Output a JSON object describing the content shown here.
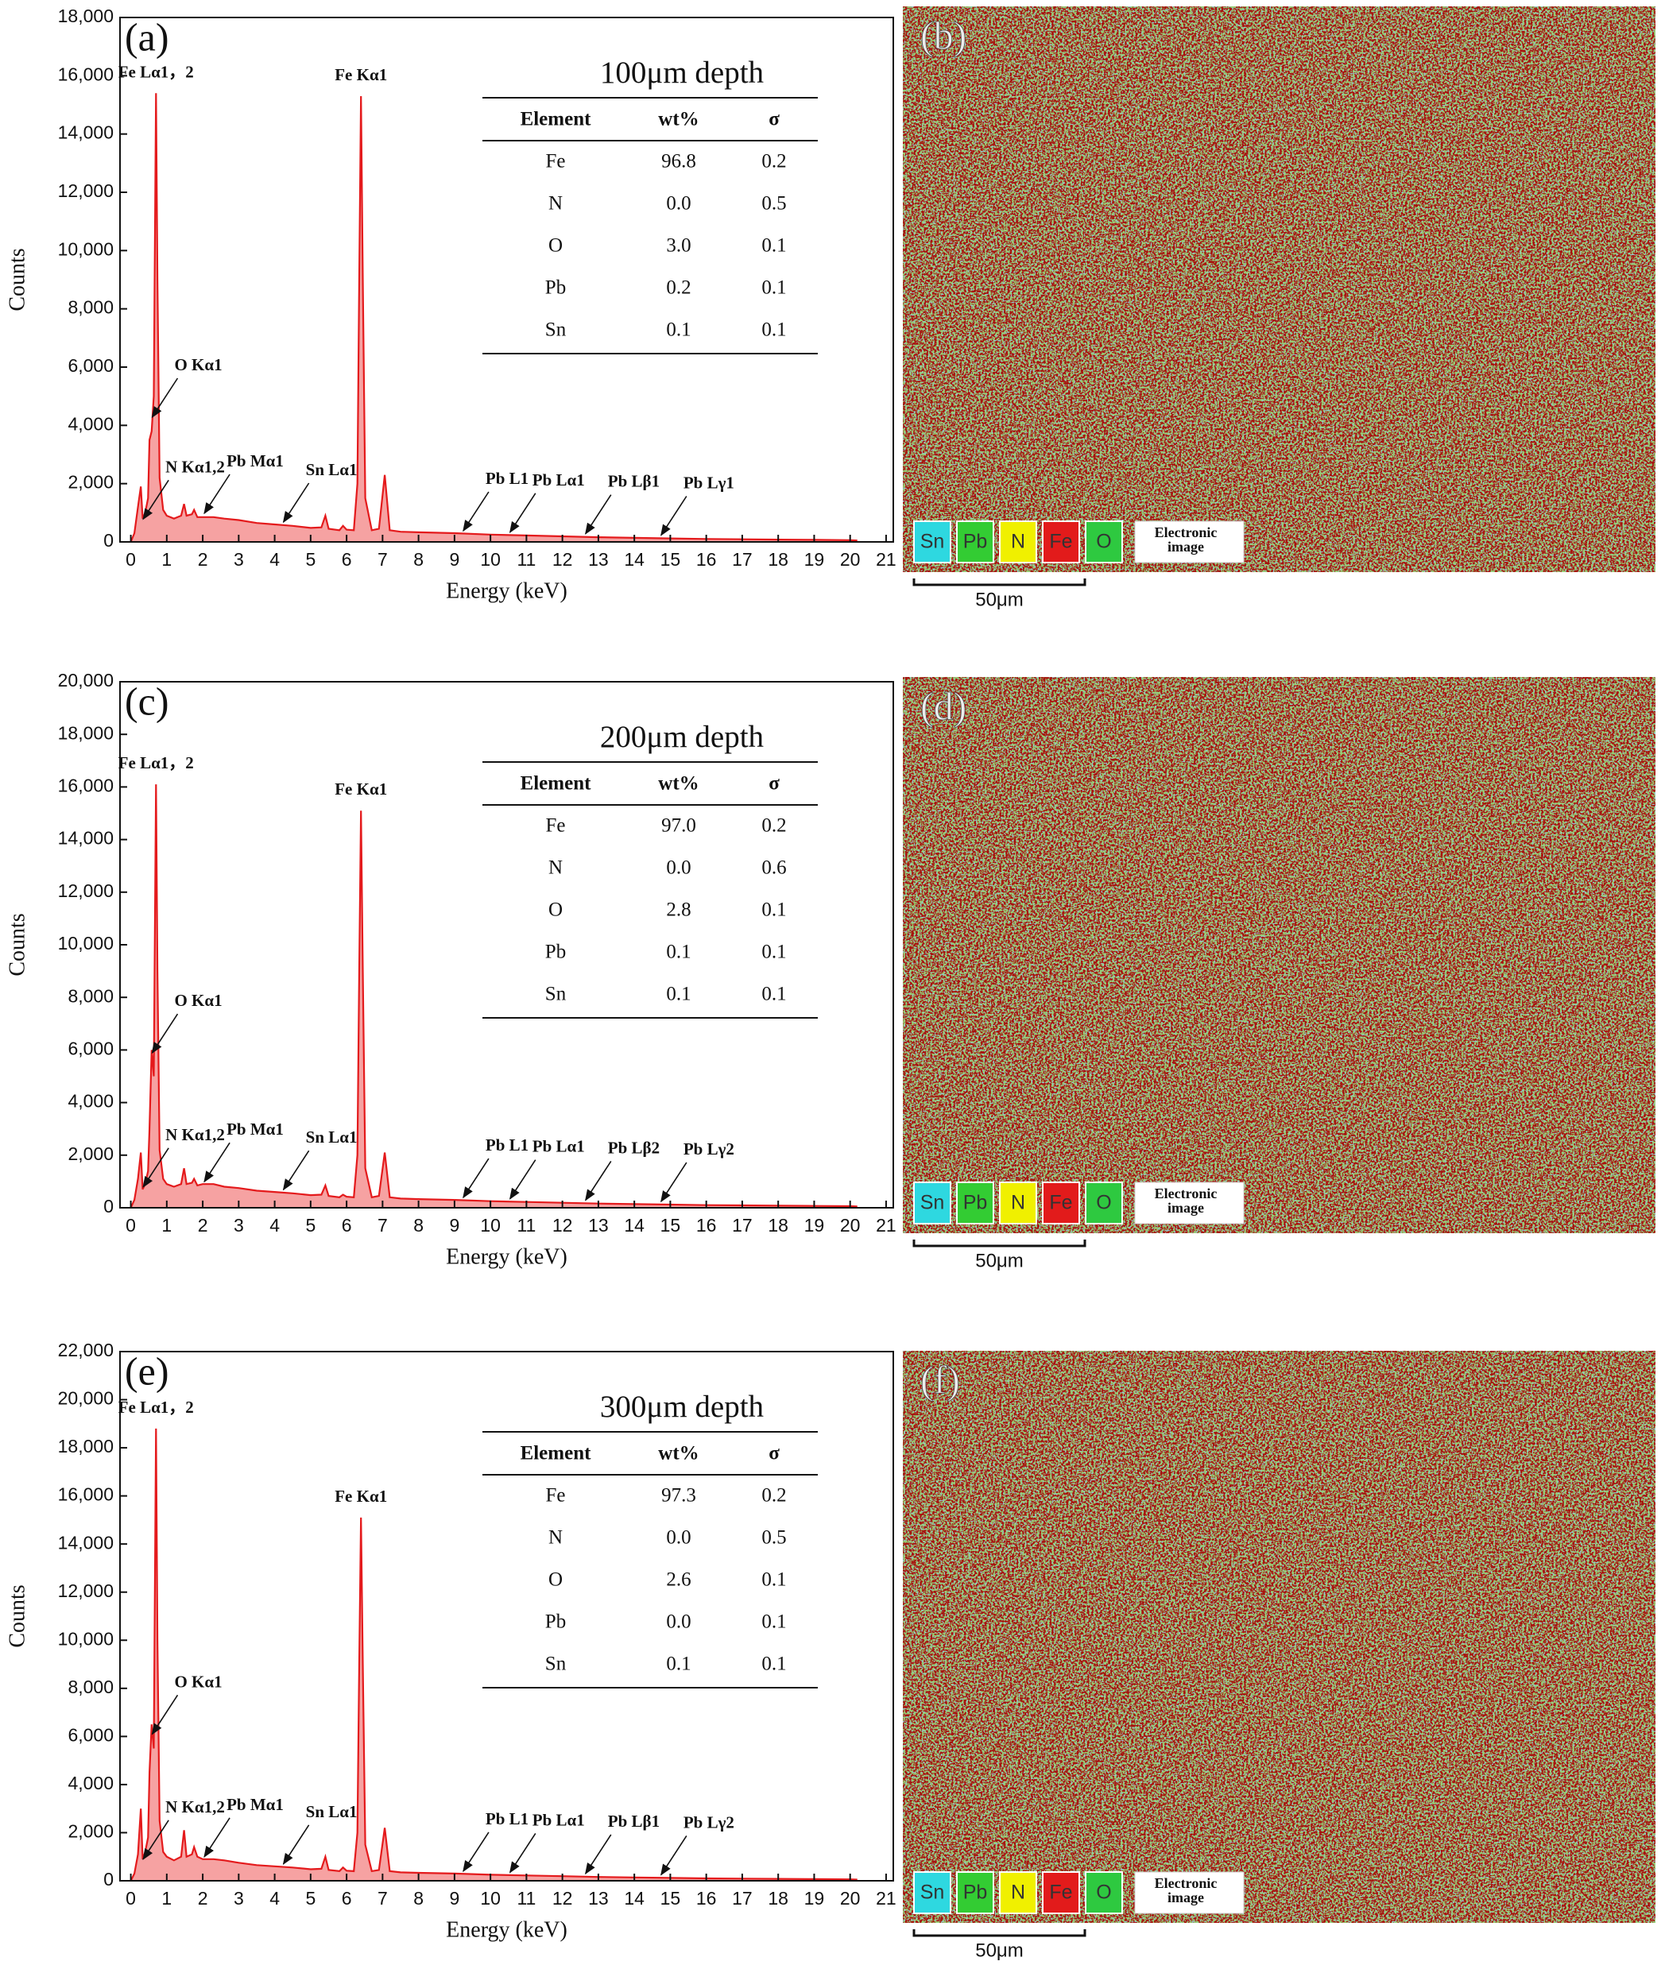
{
  "chart_data": [
    {
      "type": "area",
      "panel": "(a)",
      "color": "#e41a1c",
      "fill_color": "#f6a2a2",
      "xlabel": "Energy (keV)",
      "ylabel": "Counts",
      "xlim": [
        -0.3,
        21.2
      ],
      "ylim": [
        0,
        18000
      ],
      "xticks": [
        0,
        1,
        2,
        3,
        4,
        5,
        6,
        7,
        8,
        9,
        10,
        11,
        12,
        13,
        14,
        15,
        16,
        17,
        18,
        19,
        20,
        21
      ],
      "yticks": [
        0,
        {
          "value": 2000,
          "label": "2,000"
        },
        {
          "value": 4000,
          "label": "4,000"
        },
        {
          "value": 6000,
          "label": "6,000"
        },
        {
          "value": 8000,
          "label": "8,000"
        },
        {
          "value": 10000,
          "label": "10,000"
        },
        {
          "value": 12000,
          "label": "12,000"
        },
        {
          "value": 14000,
          "label": "14,000"
        },
        {
          "value": 16000,
          "label": "16,000"
        },
        {
          "value": 18000,
          "label": "18,000"
        }
      ],
      "x": [
        0,
        0.1,
        0.2,
        0.28,
        0.33,
        0.4,
        0.48,
        0.52,
        0.58,
        0.64,
        0.7,
        0.74,
        0.8,
        0.9,
        1.0,
        1.2,
        1.4,
        1.48,
        1.55,
        1.7,
        1.76,
        1.85,
        2.0,
        2.3,
        2.6,
        3.0,
        3.5,
        4.0,
        4.5,
        5.0,
        5.3,
        5.41,
        5.5,
        5.8,
        5.9,
        6.0,
        6.2,
        6.3,
        6.35,
        6.4,
        6.45,
        6.52,
        6.7,
        6.9,
        7.06,
        7.2,
        7.5,
        8,
        9,
        10,
        11,
        12,
        13,
        14,
        15,
        16,
        17,
        18,
        19,
        20,
        20.2
      ],
      "values": [
        0,
        300,
        1200,
        1900,
        800,
        1000,
        1500,
        3500,
        3800,
        5000,
        15400,
        9000,
        2200,
        1100,
        900,
        800,
        900,
        1300,
        900,
        950,
        1100,
        850,
        850,
        850,
        800,
        750,
        650,
        600,
        550,
        480,
        500,
        900,
        450,
        400,
        550,
        420,
        400,
        2000,
        9000,
        15300,
        9000,
        1500,
        400,
        450,
        2300,
        400,
        350,
        330,
        300,
        250,
        220,
        190,
        160,
        140,
        120,
        100,
        90,
        80,
        70,
        60,
        50
      ],
      "annotations": [
        {
          "text": "Fe Lα1，2",
          "x": 0.7,
          "y": 15400,
          "arrow": false
        },
        {
          "text": "Fe Kα1",
          "x": 6.4,
          "y": 15300,
          "arrow": false
        },
        {
          "text": "O Kα1",
          "x": 0.55,
          "y": 4200,
          "arrow": true
        },
        {
          "text": "N Kα1,2",
          "x": 0.3,
          "y": 700,
          "arrow": true
        },
        {
          "text": "Pb Mα1",
          "x": 2.0,
          "y": 900,
          "arrow": true
        },
        {
          "text": "Sn Lα1",
          "x": 4.2,
          "y": 600,
          "arrow": true
        },
        {
          "text": "Pb L1",
          "x": 9.2,
          "y": 300,
          "arrow": true
        },
        {
          "text": "Pb Lα1",
          "x": 10.5,
          "y": 250,
          "arrow": true
        },
        {
          "text": "Pb Lβ1",
          "x": 12.6,
          "y": 200,
          "arrow": true
        },
        {
          "text": "Pb Lγ1",
          "x": 14.7,
          "y": 150,
          "arrow": true
        }
      ],
      "table": {
        "title": "100μm depth",
        "columns": [
          "Element",
          "wt%",
          "σ"
        ],
        "rows": [
          [
            "Fe",
            "96.8",
            "0.2"
          ],
          [
            "N",
            "0.0",
            "0.5"
          ],
          [
            "O",
            "3.0",
            "0.1"
          ],
          [
            "Pb",
            "0.2",
            "0.1"
          ],
          [
            "Sn",
            "0.1",
            "0.1"
          ]
        ]
      }
    },
    {
      "type": "area",
      "panel": "(c)",
      "color": "#e41a1c",
      "fill_color": "#f6a2a2",
      "xlabel": "Energy (keV)",
      "ylabel": "Counts",
      "xlim": [
        -0.3,
        21.2
      ],
      "ylim": [
        0,
        20000
      ],
      "xticks": [
        0,
        1,
        2,
        3,
        4,
        5,
        6,
        7,
        8,
        9,
        10,
        11,
        12,
        13,
        14,
        15,
        16,
        17,
        18,
        19,
        20,
        21
      ],
      "yticks": [
        0,
        {
          "value": 2000,
          "label": "2,000"
        },
        {
          "value": 4000,
          "label": "4,000"
        },
        {
          "value": 6000,
          "label": "6,000"
        },
        {
          "value": 8000,
          "label": "8,000"
        },
        {
          "value": 10000,
          "label": "10,000"
        },
        {
          "value": 12000,
          "label": "12,000"
        },
        {
          "value": 14000,
          "label": "14,000"
        },
        {
          "value": 16000,
          "label": "16,000"
        },
        {
          "value": 18000,
          "label": "18,000"
        },
        {
          "value": 20000,
          "label": "20,000"
        }
      ],
      "x": [
        0,
        0.1,
        0.2,
        0.28,
        0.33,
        0.4,
        0.48,
        0.52,
        0.58,
        0.64,
        0.7,
        0.74,
        0.8,
        0.9,
        1.0,
        1.2,
        1.4,
        1.48,
        1.55,
        1.7,
        1.76,
        1.85,
        2.0,
        2.3,
        2.6,
        3.0,
        3.5,
        4.0,
        4.5,
        5.0,
        5.3,
        5.41,
        5.5,
        5.8,
        5.9,
        6.0,
        6.2,
        6.3,
        6.35,
        6.4,
        6.45,
        6.52,
        6.7,
        6.9,
        7.06,
        7.2,
        7.5,
        8,
        9,
        10,
        11,
        12,
        13,
        14,
        15,
        16,
        17,
        18,
        19,
        20,
        20.2
      ],
      "values": [
        0,
        300,
        1100,
        2100,
        700,
        900,
        1400,
        3000,
        6000,
        5000,
        16100,
        9000,
        2200,
        1100,
        900,
        800,
        900,
        1500,
        900,
        950,
        1100,
        850,
        900,
        900,
        800,
        750,
        650,
        600,
        550,
        480,
        500,
        850,
        450,
        400,
        500,
        420,
        400,
        2000,
        9000,
        15100,
        9000,
        1500,
        400,
        450,
        2100,
        400,
        350,
        330,
        300,
        250,
        220,
        190,
        160,
        140,
        120,
        100,
        90,
        80,
        70,
        60,
        50
      ],
      "annotations": [
        {
          "text": "Fe Lα1，2",
          "x": 0.7,
          "y": 16100,
          "arrow": false
        },
        {
          "text": "Fe Kα1",
          "x": 6.4,
          "y": 15100,
          "arrow": false
        },
        {
          "text": "O Kα1",
          "x": 0.55,
          "y": 5800,
          "arrow": true
        },
        {
          "text": "N Kα1,2",
          "x": 0.3,
          "y": 700,
          "arrow": true
        },
        {
          "text": "Pb Mα1",
          "x": 2.0,
          "y": 900,
          "arrow": true
        },
        {
          "text": "Sn Lα1",
          "x": 4.2,
          "y": 600,
          "arrow": true
        },
        {
          "text": "Pb L1",
          "x": 9.2,
          "y": 300,
          "arrow": true
        },
        {
          "text": "Pb Lα1",
          "x": 10.5,
          "y": 250,
          "arrow": true
        },
        {
          "text": "Pb Lβ2",
          "x": 12.6,
          "y": 200,
          "arrow": true
        },
        {
          "text": "Pb Lγ2",
          "x": 14.7,
          "y": 150,
          "arrow": true
        }
      ],
      "table": {
        "title": "200μm depth",
        "columns": [
          "Element",
          "wt%",
          "σ"
        ],
        "rows": [
          [
            "Fe",
            "97.0",
            "0.2"
          ],
          [
            "N",
            "0.0",
            "0.6"
          ],
          [
            "O",
            "2.8",
            "0.1"
          ],
          [
            "Pb",
            "0.1",
            "0.1"
          ],
          [
            "Sn",
            "0.1",
            "0.1"
          ]
        ]
      }
    },
    {
      "type": "area",
      "panel": "(e)",
      "color": "#e41a1c",
      "fill_color": "#f6a2a2",
      "xlabel": "Energy (keV)",
      "ylabel": "Counts",
      "xlim": [
        -0.3,
        21.2
      ],
      "ylim": [
        0,
        22000
      ],
      "xticks": [
        0,
        1,
        2,
        3,
        4,
        5,
        6,
        7,
        8,
        9,
        10,
        11,
        12,
        13,
        14,
        15,
        16,
        17,
        18,
        19,
        20,
        21
      ],
      "yticks": [
        0,
        {
          "value": 2000,
          "label": "2,000"
        },
        {
          "value": 4000,
          "label": "4,000"
        },
        {
          "value": 6000,
          "label": "6,000"
        },
        {
          "value": 8000,
          "label": "8,000"
        },
        {
          "value": 10000,
          "label": "10,000"
        },
        {
          "value": 12000,
          "label": "12,000"
        },
        {
          "value": 14000,
          "label": "14,000"
        },
        {
          "value": 16000,
          "label": "16,000"
        },
        {
          "value": 18000,
          "label": "18,000"
        },
        {
          "value": 20000,
          "label": "20,000"
        },
        {
          "value": 22000,
          "label": "22,000"
        }
      ],
      "x": [
        0,
        0.1,
        0.2,
        0.28,
        0.33,
        0.4,
        0.48,
        0.52,
        0.58,
        0.64,
        0.7,
        0.74,
        0.8,
        0.9,
        1.0,
        1.2,
        1.4,
        1.48,
        1.55,
        1.7,
        1.76,
        1.85,
        2.0,
        2.3,
        2.6,
        3.0,
        3.5,
        4.0,
        4.5,
        5.0,
        5.3,
        5.41,
        5.5,
        5.8,
        5.9,
        6.0,
        6.2,
        6.3,
        6.35,
        6.4,
        6.45,
        6.52,
        6.7,
        6.9,
        7.06,
        7.2,
        7.5,
        8,
        9,
        10,
        11,
        12,
        13,
        14,
        15,
        16,
        17,
        18,
        19,
        20,
        20.2
      ],
      "values": [
        0,
        300,
        1100,
        3000,
        900,
        1200,
        1800,
        4500,
        6500,
        5500,
        18800,
        10000,
        2500,
        1200,
        1000,
        850,
        1000,
        2100,
        1000,
        1100,
        1400,
        1000,
        900,
        900,
        850,
        750,
        650,
        600,
        550,
        480,
        500,
        1000,
        450,
        400,
        550,
        420,
        400,
        2000,
        9000,
        15100,
        9000,
        1500,
        400,
        450,
        2200,
        400,
        350,
        330,
        300,
        250,
        220,
        190,
        160,
        140,
        120,
        100,
        90,
        80,
        70,
        60,
        50
      ],
      "annotations": [
        {
          "text": "Fe Lα1，2",
          "x": 0.7,
          "y": 18800,
          "arrow": false
        },
        {
          "text": "Fe Kα1",
          "x": 6.4,
          "y": 15100,
          "arrow": false
        },
        {
          "text": "O Kα1",
          "x": 0.55,
          "y": 6000,
          "arrow": true
        },
        {
          "text": "N Kα1,2",
          "x": 0.3,
          "y": 800,
          "arrow": true
        },
        {
          "text": "Pb Mα1",
          "x": 2.0,
          "y": 900,
          "arrow": true
        },
        {
          "text": "Sn Lα1",
          "x": 4.2,
          "y": 600,
          "arrow": true
        },
        {
          "text": "Pb L1",
          "x": 9.2,
          "y": 300,
          "arrow": true
        },
        {
          "text": "Pb Lα1",
          "x": 10.5,
          "y": 250,
          "arrow": true
        },
        {
          "text": "Pb Lβ1",
          "x": 12.6,
          "y": 200,
          "arrow": true
        },
        {
          "text": "Pb Lγ2",
          "x": 14.7,
          "y": 150,
          "arrow": true
        }
      ],
      "table": {
        "title": "300μm depth",
        "columns": [
          "Element",
          "wt%",
          "σ"
        ],
        "rows": [
          [
            "Fe",
            "97.3",
            "0.2"
          ],
          [
            "N",
            "0.0",
            "0.5"
          ],
          [
            "O",
            "2.6",
            "0.1"
          ],
          [
            "Pb",
            "0.0",
            "0.1"
          ],
          [
            "Sn",
            "0.1",
            "0.1"
          ]
        ]
      }
    }
  ],
  "maps": [
    {
      "label": "(b)"
    },
    {
      "label": "(d)"
    },
    {
      "label": "(f)"
    }
  ],
  "map_legend": {
    "elements": [
      {
        "name": "Sn",
        "color": "#2ed8e0"
      },
      {
        "name": "Pb",
        "color": "#33cc33"
      },
      {
        "name": "N",
        "color": "#f0f000"
      },
      {
        "name": "Fe",
        "color": "#e21b1b"
      },
      {
        "name": "O",
        "color": "#2ec940"
      }
    ],
    "image_label": [
      "Electronic",
      "image"
    ]
  },
  "scale_bar": "50μm"
}
